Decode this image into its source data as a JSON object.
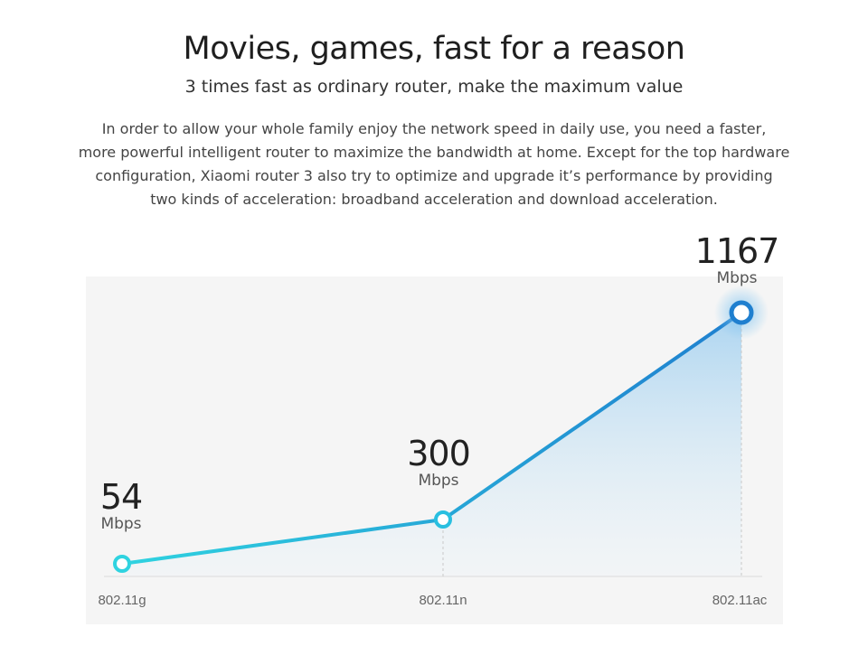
{
  "header": {
    "title": "Movies, games, fast for a reason",
    "subtitle": "3 times fast as ordinary router, make the maximum value"
  },
  "description": {
    "lines": [
      "In order to allow your whole family enjoy the network speed in daily use, you need a faster,",
      "more powerful intelligent router to maximize the bandwidth at home. Except for the top hardware",
      "configuration, Xiaomi router 3 also try to optimize and upgrade it’s performance by providing",
      "two kinds of acceleration: broadband acceleration and download acceleration."
    ]
  },
  "colors": {
    "line_start": "#2fd3e0",
    "line_end": "#1f7fcf",
    "panel": "#f5f5f5",
    "area": "#b9dcf2"
  },
  "chart_data": {
    "type": "line",
    "categories": [
      "802.11g",
      "802.11n",
      "802.11ac"
    ],
    "values": [
      54,
      300,
      1167
    ],
    "unit": "Mbps",
    "labels": [
      {
        "number": "54",
        "unit": "Mbps"
      },
      {
        "number": "300",
        "unit": "Mbps"
      },
      {
        "number": "1167",
        "unit": "Mbps"
      }
    ],
    "title": "",
    "xlabel": "",
    "ylabel": "",
    "ylim": [
      0,
      1167
    ],
    "grid": false,
    "legend": "none"
  }
}
